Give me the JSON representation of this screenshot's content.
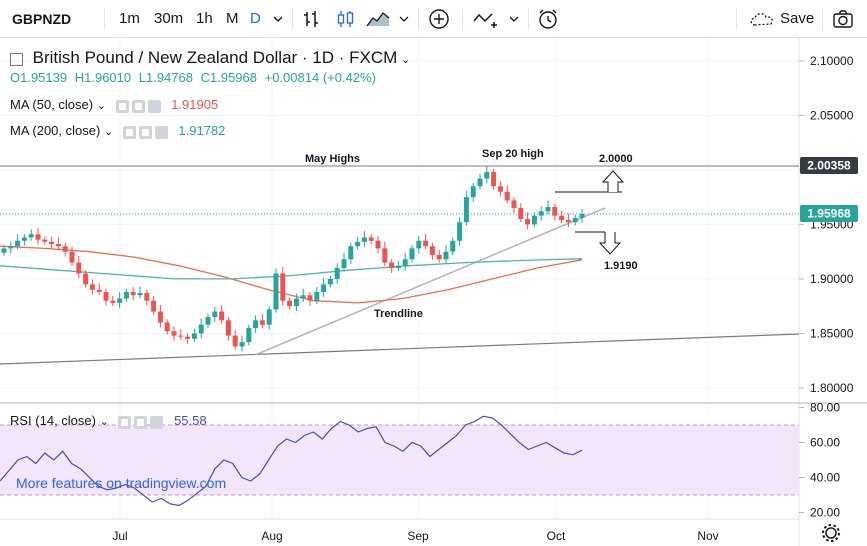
{
  "toolbar": {
    "symbol": "GBPNZD",
    "intervals": [
      "1m",
      "30m",
      "1h",
      "M",
      "D"
    ],
    "active_interval": "D",
    "save_label": "Save"
  },
  "legend": {
    "title": "British Pound / New Zealand Dollar · 1D · FXCM",
    "ohlc": {
      "o": "O1.95139",
      "h": "H1.96010",
      "l": "L1.94768",
      "c": "C1.95968",
      "chg": "+0.00814 (+0.42%)"
    },
    "ma50": {
      "label": "MA (50, close)",
      "value": "1.91905"
    },
    "ma200": {
      "label": "MA (200, close)",
      "value": "1.91782"
    },
    "rsi": {
      "label": "RSI (14, close)",
      "value": "55.58"
    }
  },
  "watermark": "More features on tradingview.com",
  "annotations": {
    "may_highs": "May Highs",
    "sep20": "Sep 20 high",
    "target_up": "2.0000",
    "target_down": "1.9190",
    "trendline": "Trendline"
  },
  "colors": {
    "up": "#26a69a",
    "down": "#ef5350",
    "ma50": "#4db6ac",
    "ma200": "#ef6c4a",
    "rsi": "#3f51b5",
    "rsi_band": "#f3e5fa",
    "price_badge": "#26a69a",
    "accent": "#2962ff"
  },
  "chart_data": {
    "type": "candlestick",
    "symbol": "GBPNZD",
    "timeframe": "1D",
    "price_axis": {
      "ticks": [
        "2.10000",
        "2.05000",
        "2.00000",
        "1.95000",
        "1.90000",
        "1.85000",
        "1.80000"
      ],
      "range": [
        1.78,
        2.12
      ]
    },
    "price_badges": {
      "level_line": "2.00358",
      "last_price": "1.95968"
    },
    "time_axis": [
      "Jul",
      "Aug",
      "Sep",
      "Oct",
      "Nov"
    ],
    "rsi_axis": {
      "ticks": [
        "80.00",
        "60.00",
        "40.00",
        "20.00"
      ],
      "band": [
        30,
        70
      ],
      "range": [
        15,
        82
      ]
    },
    "close_path": [
      1.928,
      1.93,
      1.935,
      1.938,
      1.941,
      1.936,
      1.934,
      1.932,
      1.93,
      1.925,
      1.915,
      1.905,
      1.895,
      1.89,
      1.888,
      1.88,
      1.878,
      1.882,
      1.888,
      1.885,
      1.887,
      1.88,
      1.87,
      1.86,
      1.852,
      1.848,
      1.847,
      1.845,
      1.85,
      1.858,
      1.865,
      1.87,
      1.862,
      1.848,
      1.838,
      1.842,
      1.855,
      1.862,
      1.858,
      1.872,
      1.905,
      1.88,
      1.875,
      1.882,
      1.885,
      1.88,
      1.888,
      1.895,
      1.9,
      1.91,
      1.918,
      1.93,
      1.934,
      1.938,
      1.935,
      1.928,
      1.915,
      1.91,
      1.912,
      1.918,
      1.928,
      1.935,
      1.93,
      1.922,
      1.918,
      1.925,
      1.935,
      1.952,
      1.975,
      1.985,
      1.992,
      1.998,
      1.985,
      1.98,
      1.972,
      1.965,
      1.955,
      1.95,
      1.958,
      1.962,
      1.966,
      1.958,
      1.954,
      1.952,
      1.956,
      1.9597
    ],
    "ma50_path": [
      1.912,
      1.908,
      1.904,
      1.9,
      1.9,
      1.903,
      1.908,
      1.912,
      1.915,
      1.917,
      1.9185
    ],
    "ma200_path": [
      1.93,
      1.928,
      1.925,
      1.92,
      1.912,
      1.902,
      1.89,
      1.88,
      1.878,
      1.882,
      1.89,
      1.9,
      1.91,
      1.9175
    ],
    "rsi_path": [
      38,
      44,
      50,
      52,
      48,
      54,
      50,
      55,
      48,
      45,
      40,
      35,
      33,
      34,
      36,
      34,
      30,
      26,
      28,
      25,
      24,
      27,
      31,
      35,
      45,
      50,
      48,
      40,
      38,
      42,
      50,
      58,
      62,
      60,
      64,
      66,
      62,
      68,
      72,
      70,
      66,
      68,
      69,
      60,
      58,
      55,
      60,
      58,
      52,
      56,
      60,
      64,
      70,
      72,
      75,
      74,
      70,
      65,
      60,
      56,
      58,
      60,
      57,
      54,
      53,
      55.58
    ],
    "key_levels": {
      "sep20_high": 1.998,
      "may_highs": 2.00358,
      "target_up": 2.0,
      "target_down": 1.919
    }
  }
}
